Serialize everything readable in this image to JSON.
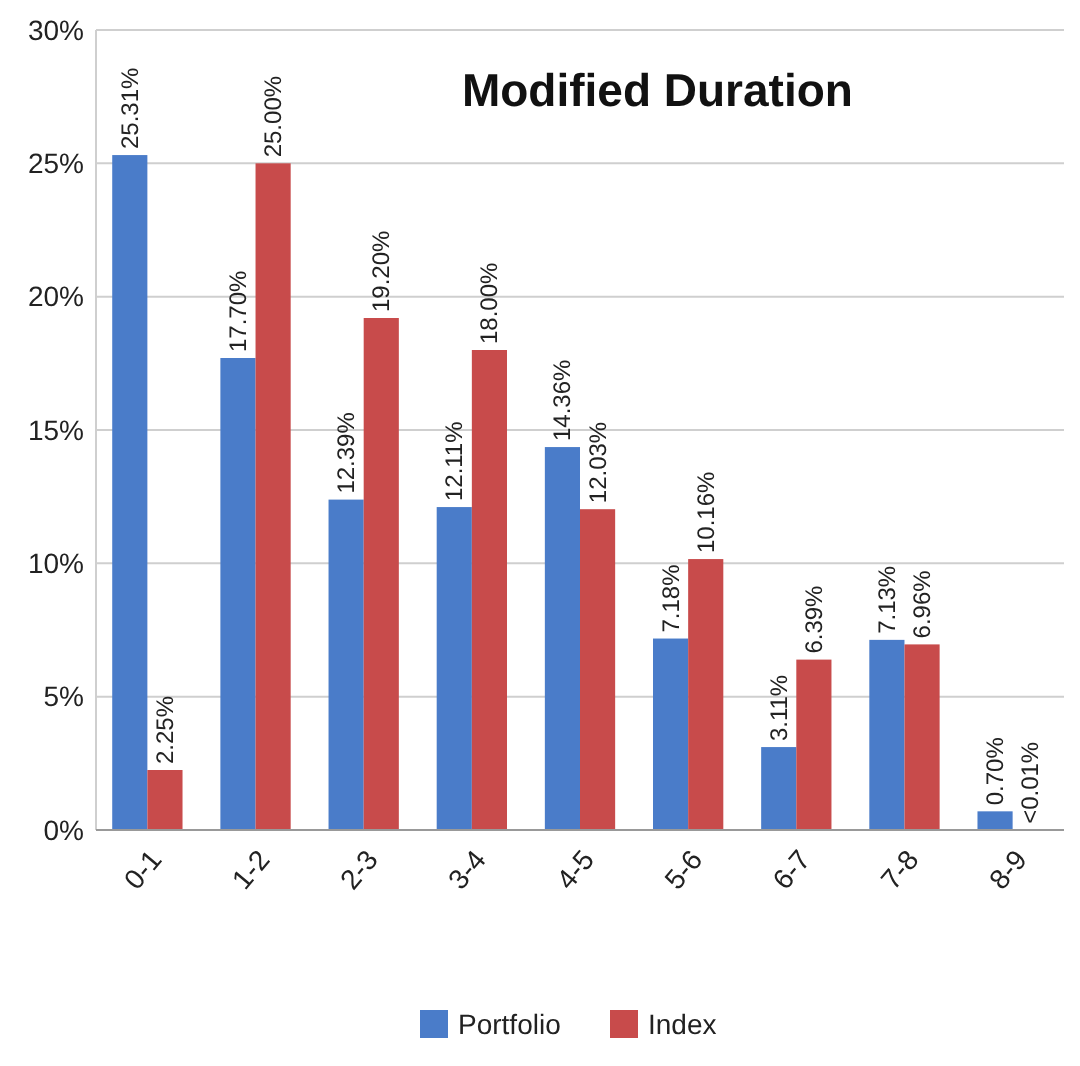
{
  "chart_data": {
    "type": "bar",
    "title": "Modified Duration",
    "categories": [
      "0-1",
      "1-2",
      "2-3",
      "3-4",
      "4-5",
      "5-6",
      "6-7",
      "7-8",
      "8-9"
    ],
    "series": [
      {
        "name": "Portfolio",
        "color": "#4a7cc9",
        "values": [
          25.31,
          17.7,
          12.39,
          12.11,
          14.36,
          7.18,
          3.11,
          7.13,
          0.7
        ],
        "value_labels": [
          "25.31%",
          "17.70%",
          "12.39%",
          "12.11%",
          "14.36%",
          "7.18%",
          "3.11%",
          "7.13%",
          "0.70%"
        ]
      },
      {
        "name": "Index",
        "color": "#c84b4b",
        "values": [
          2.25,
          25.0,
          19.2,
          18.0,
          12.03,
          10.16,
          6.39,
          6.96,
          0.005
        ],
        "value_labels": [
          "2.25%",
          "25.00%",
          "19.20%",
          "18.00%",
          "12.03%",
          "10.16%",
          "6.39%",
          "6.96%",
          "<0.01%"
        ]
      }
    ],
    "ylim": [
      0,
      30
    ],
    "yticks": [
      {
        "value": 0,
        "label": "0%"
      },
      {
        "value": 5,
        "label": "5%"
      },
      {
        "value": 10,
        "label": "10%"
      },
      {
        "value": 15,
        "label": "15%"
      },
      {
        "value": 20,
        "label": "20%"
      },
      {
        "value": 25,
        "label": "25%"
      },
      {
        "value": 30,
        "label": "30%"
      }
    ],
    "grid": "y",
    "legend": "bottom"
  }
}
